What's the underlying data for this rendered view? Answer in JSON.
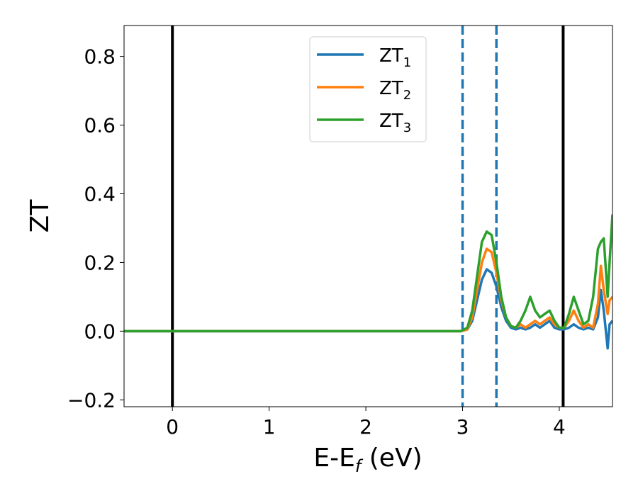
{
  "chart_data": {
    "type": "line",
    "title": "",
    "xlabel": "E-E",
    "xlabel_sub": "f",
    "xlabel_unit": " (eV)",
    "ylabel": "ZT",
    "xlim": [
      -0.5,
      4.55
    ],
    "ylim": [
      -0.22,
      0.89
    ],
    "xticks": [
      0,
      1,
      2,
      3,
      4
    ],
    "xtick_labels": [
      "0",
      "1",
      "2",
      "3",
      "4"
    ],
    "yticks": [
      -0.2,
      0.0,
      0.2,
      0.4,
      0.6,
      0.8
    ],
    "ytick_labels": [
      "−0.2",
      "0.0",
      "0.2",
      "0.4",
      "0.6",
      "0.8"
    ],
    "grid": false,
    "legend_position": "top-center",
    "vlines": [
      {
        "x": 0.0,
        "style": "solid",
        "color": "#000000"
      },
      {
        "x": 4.04,
        "style": "solid",
        "color": "#000000"
      },
      {
        "x": 3.0,
        "style": "dashed",
        "color": "#1f77b4"
      },
      {
        "x": 3.35,
        "style": "dashed",
        "color": "#1f77b4"
      }
    ],
    "series": [
      {
        "name": "ZT",
        "sub": "1",
        "color": "#1f77b4",
        "x": [
          -0.5,
          2.98,
          3.05,
          3.1,
          3.15,
          3.2,
          3.25,
          3.3,
          3.35,
          3.4,
          3.45,
          3.5,
          3.55,
          3.6,
          3.65,
          3.7,
          3.75,
          3.8,
          3.85,
          3.9,
          3.95,
          4.0,
          4.05,
          4.1,
          4.15,
          4.2,
          4.25,
          4.3,
          4.35,
          4.4,
          4.43,
          4.46,
          4.5,
          4.52,
          4.55
        ],
        "y": [
          0.0,
          0.0,
          0.005,
          0.03,
          0.09,
          0.15,
          0.18,
          0.17,
          0.13,
          0.07,
          0.03,
          0.01,
          0.005,
          0.01,
          0.005,
          0.01,
          0.02,
          0.01,
          0.02,
          0.03,
          0.01,
          0.005,
          0.005,
          0.01,
          0.02,
          0.01,
          0.005,
          0.01,
          0.005,
          0.04,
          0.12,
          0.06,
          -0.05,
          0.02,
          0.03
        ]
      },
      {
        "name": "ZT",
        "sub": "2",
        "color": "#ff7f0e",
        "x": [
          -0.5,
          2.98,
          3.05,
          3.1,
          3.15,
          3.2,
          3.25,
          3.3,
          3.35,
          3.4,
          3.45,
          3.5,
          3.55,
          3.6,
          3.65,
          3.7,
          3.75,
          3.8,
          3.85,
          3.9,
          3.95,
          4.0,
          4.05,
          4.1,
          4.15,
          4.2,
          4.25,
          4.3,
          4.35,
          4.4,
          4.43,
          4.46,
          4.5,
          4.52,
          4.55
        ],
        "y": [
          0.0,
          0.0,
          0.005,
          0.04,
          0.12,
          0.2,
          0.24,
          0.23,
          0.17,
          0.09,
          0.04,
          0.015,
          0.01,
          0.02,
          0.01,
          0.02,
          0.03,
          0.02,
          0.03,
          0.04,
          0.02,
          0.01,
          0.01,
          0.03,
          0.06,
          0.03,
          0.01,
          0.02,
          0.01,
          0.08,
          0.19,
          0.12,
          0.05,
          0.09,
          0.1
        ]
      },
      {
        "name": "ZT",
        "sub": "3",
        "color": "#2ca02c",
        "x": [
          -0.5,
          2.98,
          3.05,
          3.1,
          3.15,
          3.2,
          3.25,
          3.3,
          3.35,
          3.4,
          3.45,
          3.5,
          3.55,
          3.6,
          3.65,
          3.7,
          3.75,
          3.8,
          3.85,
          3.9,
          3.95,
          4.0,
          4.05,
          4.1,
          4.15,
          4.2,
          4.25,
          4.3,
          4.35,
          4.4,
          4.43,
          4.46,
          4.5,
          4.52,
          4.55
        ],
        "y": [
          0.0,
          0.0,
          0.01,
          0.06,
          0.16,
          0.26,
          0.29,
          0.28,
          0.2,
          0.1,
          0.04,
          0.015,
          0.01,
          0.03,
          0.06,
          0.1,
          0.06,
          0.04,
          0.05,
          0.06,
          0.03,
          0.01,
          0.01,
          0.05,
          0.1,
          0.06,
          0.02,
          0.03,
          0.1,
          0.24,
          0.26,
          0.27,
          0.1,
          0.2,
          0.34
        ]
      }
    ]
  }
}
